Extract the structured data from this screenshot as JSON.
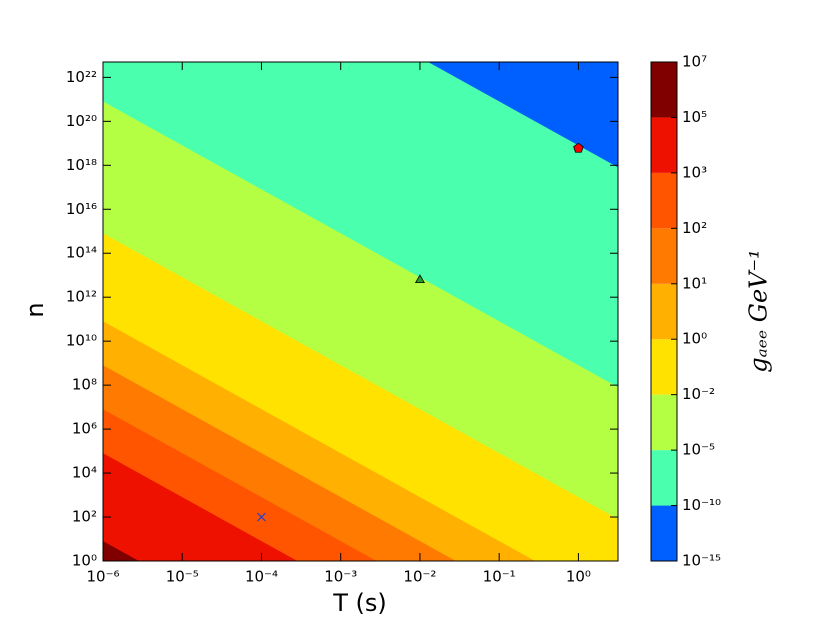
{
  "chart_data": {
    "type": "contour",
    "xlabel": "T (s)",
    "ylabel": "n",
    "colorbar_label": "gₐₑₑ GeV⁻¹",
    "xscale": "log",
    "yscale": "log",
    "xlim": [
      1e-06,
      3.16
    ],
    "ylim": [
      1,
      5e+22
    ],
    "xticks": [
      {
        "value": 1e-06,
        "label": "10⁻⁶"
      },
      {
        "value": 1e-05,
        "label": "10⁻⁵"
      },
      {
        "value": 0.0001,
        "label": "10⁻⁴"
      },
      {
        "value": 0.001,
        "label": "10⁻³"
      },
      {
        "value": 0.01,
        "label": "10⁻²"
      },
      {
        "value": 0.1,
        "label": "10⁻¹"
      },
      {
        "value": 1,
        "label": "10⁰"
      }
    ],
    "yticks": [
      {
        "value": 1,
        "label": "10⁰"
      },
      {
        "value": 100.0,
        "label": "10²"
      },
      {
        "value": 10000.0,
        "label": "10⁴"
      },
      {
        "value": 1000000.0,
        "label": "10⁶"
      },
      {
        "value": 100000000.0,
        "label": "10⁸"
      },
      {
        "value": 10000000000.0,
        "label": "10¹⁰"
      },
      {
        "value": 1000000000000.0,
        "label": "10¹²"
      },
      {
        "value": 100000000000000.0,
        "label": "10¹⁴"
      },
      {
        "value": 1e+16,
        "label": "10¹⁶"
      },
      {
        "value": 1e+18,
        "label": "10¹⁸"
      },
      {
        "value": 1e+20,
        "label": "10²⁰"
      },
      {
        "value": 1e+22,
        "label": "10²²"
      }
    ],
    "field": {
      "coefficient": 0.28,
      "T_power": -1,
      "n_power": -0.5
    },
    "levels": [
      {
        "value": 1e-15,
        "label": "10⁻¹⁵"
      },
      {
        "value": 1e-10,
        "label": "10⁻¹⁰"
      },
      {
        "value": 1e-05,
        "label": "10⁻⁵"
      },
      {
        "value": 0.01,
        "label": "10⁻²"
      },
      {
        "value": 1,
        "label": "10⁰"
      },
      {
        "value": 10,
        "label": "10¹"
      },
      {
        "value": 100,
        "label": "10²"
      },
      {
        "value": 1000,
        "label": "10³"
      },
      {
        "value": 100000.0,
        "label": "10⁵"
      },
      {
        "value": 10000000.0,
        "label": "10⁷"
      }
    ],
    "colors": [
      "#0060ff",
      "#4affad",
      "#b4ff43",
      "#ffe200",
      "#ffb000",
      "#ff7a00",
      "#ff5500",
      "#ee1100",
      "#800000"
    ],
    "points": [
      {
        "x": 1,
        "y": 6e+18,
        "color": "#ff0000",
        "marker": "pentagon"
      },
      {
        "x": 0.01,
        "y": 6000000000000.0,
        "color": "#2ca02c",
        "marker": "triangle"
      },
      {
        "x": 0.0001,
        "y": 100,
        "color": "#3040c0",
        "marker": "x"
      }
    ]
  }
}
